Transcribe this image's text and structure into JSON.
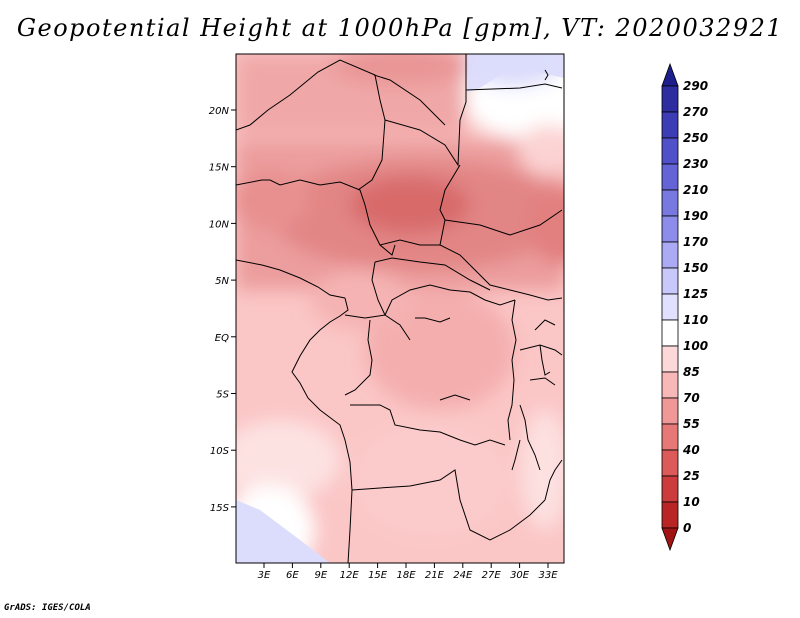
{
  "title": "Geopotential Height at 1000hPa [gpm], VT: 2020032921",
  "credit": "GrADS: IGES/COLA",
  "map": {
    "lat_labels": [
      "20N",
      "15N",
      "10N",
      "5N",
      "EQ",
      "5S",
      "10S",
      "15S"
    ],
    "lon_labels": [
      "3E",
      "6E",
      "9E",
      "12E",
      "15E",
      "18E",
      "21E",
      "24E",
      "27E",
      "30E",
      "33E"
    ]
  },
  "colorbar": {
    "levels": [
      "290",
      "270",
      "250",
      "230",
      "210",
      "190",
      "170",
      "150",
      "125",
      "110",
      "100",
      "85",
      "70",
      "55",
      "40",
      "25",
      "10",
      "0"
    ],
    "colors": [
      "#1e1e8c",
      "#2d2da0",
      "#3c3cb4",
      "#5050c8",
      "#6464d7",
      "#7878e1",
      "#8c8ceb",
      "#aaaaf5",
      "#c8c8fa",
      "#e1e1ff",
      "#ffffff",
      "#fdd8d8",
      "#f8b8b8",
      "#f09898",
      "#e67878",
      "#dc5a5a",
      "#cd3c3c",
      "#b92424",
      "#a01414"
    ]
  }
}
